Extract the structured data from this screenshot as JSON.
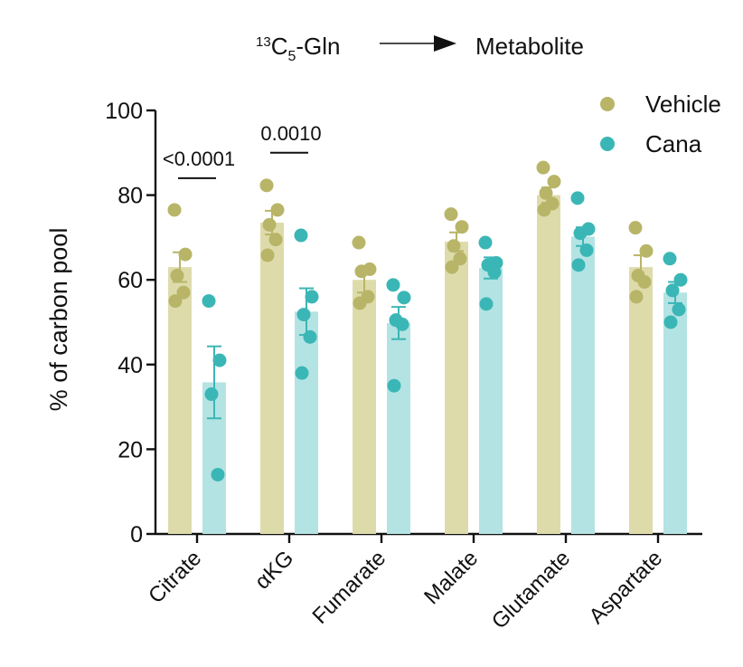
{
  "header": {
    "isotope": "13",
    "element": "C",
    "subscript": "5",
    "substrate": "-Gln",
    "product": "Metabolite"
  },
  "chart_data": {
    "type": "bar",
    "title": "13C5-Gln → Metabolite",
    "xlabel": "",
    "ylabel": "% of carbon pool",
    "ylim": [
      0,
      100
    ],
    "yticks": [
      0,
      20,
      40,
      60,
      80,
      100
    ],
    "categories": [
      "Citrate",
      "αKG",
      "Fumarate",
      "Malate",
      "Glutamate",
      "Aspartate"
    ],
    "legend_position": "top-right",
    "colors": {
      "Vehicle_bar": "#dedbab",
      "Vehicle_dot": "#b8b568",
      "Cana_bar": "#b4e3e3",
      "Cana_dot": "#3bb6b6",
      "axis": "#111111"
    },
    "series": [
      {
        "name": "Vehicle",
        "values": [
          63,
          73.5,
          60,
          69,
          80,
          63
        ],
        "sem": [
          3.5,
          2.8,
          3.0,
          2.2,
          1.8,
          2.8
        ],
        "points": [
          [
            76.5,
            66,
            61,
            57,
            55
          ],
          [
            82.3,
            76.5,
            73,
            69.5,
            65.8
          ],
          [
            68.8,
            62.5,
            62,
            56,
            54.5
          ],
          [
            75.5,
            72.5,
            68,
            65,
            63
          ],
          [
            86.5,
            83.2,
            80.5,
            78,
            76.5
          ],
          [
            72.3,
            66.8,
            61,
            59.5,
            56
          ]
        ]
      },
      {
        "name": "Cana",
        "values": [
          35.8,
          52.5,
          49.8,
          62.8,
          70.2,
          57
        ],
        "sem": [
          8.5,
          5.5,
          3.8,
          2.5,
          2.2,
          2.5
        ],
        "points": [
          [
            55,
            41,
            33,
            14
          ],
          [
            70.5,
            56,
            51.8,
            46.5,
            38
          ],
          [
            58.8,
            55.8,
            50.5,
            49.5,
            35
          ],
          [
            68.8,
            64,
            63.5,
            61.8,
            54.3
          ],
          [
            79.3,
            72,
            71,
            67,
            63.5
          ],
          [
            65,
            60,
            57.5,
            53,
            50
          ]
        ]
      }
    ],
    "annotations": [
      {
        "category": "Citrate",
        "text": "<0.0001",
        "y": 84
      },
      {
        "category": "αKG",
        "text": "0.0010",
        "y": 90
      }
    ]
  }
}
